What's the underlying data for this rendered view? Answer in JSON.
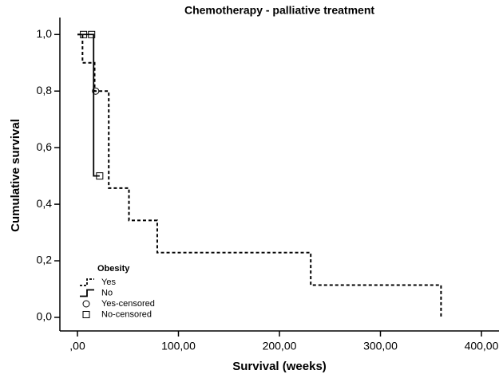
{
  "chart_data": {
    "type": "step",
    "title": "Chemotherapy - palliative treatment",
    "x_label": "Survival (weeks)",
    "y_label": "Cumulative survival",
    "legend_title": "Obesity",
    "legend": "lower left",
    "xlim": [
      -17.4,
      417.4
    ],
    "ylim": [
      -0.048,
      1.06
    ],
    "xticks": [
      {
        "value": 0,
        "label": ",00"
      },
      {
        "value": 100,
        "label": "100,00"
      },
      {
        "value": 200,
        "label": "200,00"
      },
      {
        "value": 300,
        "label": "300,00"
      },
      {
        "value": 400,
        "label": "400,00"
      }
    ],
    "yticks": [
      {
        "value": 0,
        "label": "0,0"
      },
      {
        "value": 0.2,
        "label": "0,2"
      },
      {
        "value": 0.4,
        "label": "0,4"
      },
      {
        "value": 0.6,
        "label": "0,6"
      },
      {
        "value": 0.8,
        "label": "0,8"
      },
      {
        "value": 1.0,
        "label": "1,0"
      }
    ],
    "series": [
      {
        "name": "Yes",
        "color": "#000000",
        "style": "dashed",
        "x": [
          0,
          5,
          17,
          31,
          51,
          79,
          231,
          360
        ],
        "values": [
          1.0,
          0.9,
          0.8,
          0.457,
          0.343,
          0.229,
          0.114,
          0
        ]
      },
      {
        "name": "No",
        "color": "#000000",
        "style": "solid",
        "x": [
          0,
          16,
          22
        ],
        "values": [
          1.0,
          0.5,
          0.5
        ]
      },
      {
        "name": "Yes-censored",
        "color": "#000000",
        "marker": "circle",
        "x": [
          18
        ],
        "values": [
          0.8
        ]
      },
      {
        "name": "No-censored",
        "color": "#000000",
        "marker": "square",
        "x": [
          6,
          14,
          22
        ],
        "values": [
          1.0,
          1.0,
          0.5
        ]
      }
    ]
  }
}
